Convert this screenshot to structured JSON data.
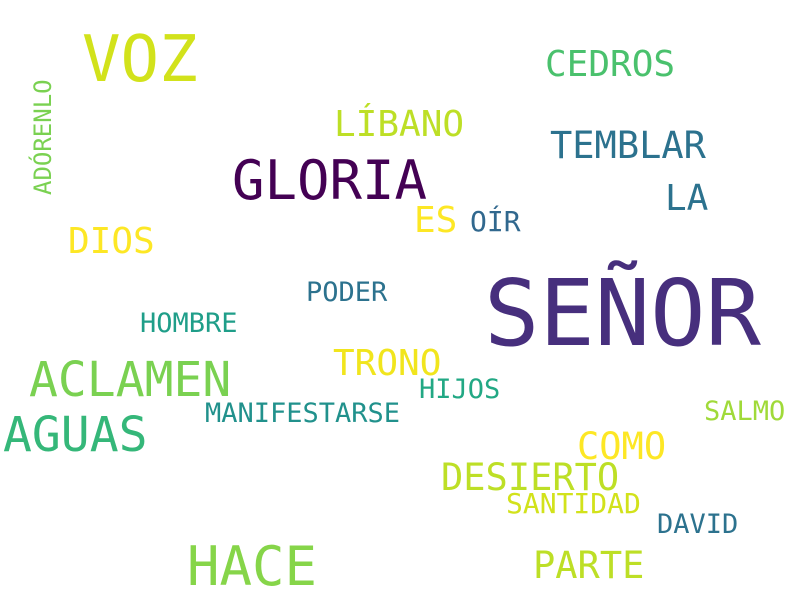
{
  "words": {
    "voz": {
      "text": "VOZ",
      "color": "#d2e21b"
    },
    "cedros": {
      "text": "CEDROS",
      "color": "#4ac16d"
    },
    "adorenlo": {
      "text": "ADÓRENLO",
      "color": "#7ad151"
    },
    "libano": {
      "text": "LÍBANO",
      "color": "#bddf26"
    },
    "temblar": {
      "text": "TEMBLAR",
      "color": "#2c728e"
    },
    "gloria": {
      "text": "GLORIA",
      "color": "#440154"
    },
    "la": {
      "text": "LA",
      "color": "#2c728e"
    },
    "es": {
      "text": "ES",
      "color": "#fde725"
    },
    "oir": {
      "text": "OÍR",
      "color": "#31688e"
    },
    "dios": {
      "text": "DIOS",
      "color": "#fde725"
    },
    "poder": {
      "text": "PODER",
      "color": "#2c728e"
    },
    "senor": {
      "text": "SEÑOR",
      "color": "#472f7d"
    },
    "hombre": {
      "text": "HOMBRE",
      "color": "#1f9e89"
    },
    "trono": {
      "text": "TRONO",
      "color": "#f1e51d"
    },
    "aclamen": {
      "text": "ACLAMEN",
      "color": "#7ad151"
    },
    "hijos": {
      "text": "HIJOS",
      "color": "#22a884"
    },
    "manifestarse": {
      "text": "MANIFESTARSE",
      "color": "#21918c"
    },
    "salmo": {
      "text": "SALMO",
      "color": "#a0da39"
    },
    "aguas": {
      "text": "AGUAS",
      "color": "#35b779"
    },
    "como": {
      "text": "COMO",
      "color": "#fde725"
    },
    "desierto": {
      "text": "DESIERTO",
      "color": "#bddf26"
    },
    "santidad": {
      "text": "SANTIDAD",
      "color": "#d2e21b"
    },
    "david": {
      "text": "DAVID",
      "color": "#2c728e"
    },
    "hace": {
      "text": "HACE",
      "color": "#86d549"
    },
    "parte": {
      "text": "PARTE",
      "color": "#bddf26"
    }
  }
}
